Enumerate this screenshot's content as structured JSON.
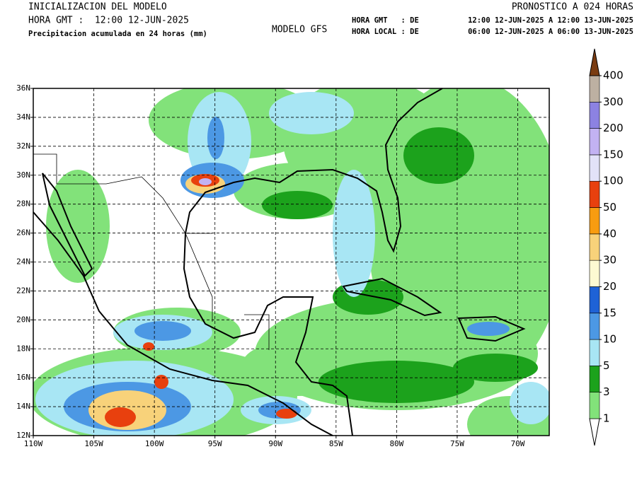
{
  "header": {
    "left_title": "INICIALIZACION DEL MODELO",
    "left_time": "HORA GMT :  12:00 12-JUN-2025",
    "variable": "Precipitacion acumulada en 24 horas (mm)",
    "model": "MODELO GFS",
    "forecast": "PRONOSTICO A 024 HORAS",
    "gmt_label": "HORA GMT   : DE",
    "gmt_range": "12:00 12-JUN-2025 A 12:00 13-JUN-2025",
    "local_label": "HORA LOCAL : DE",
    "local_range": "06:00 12-JUN-2025 A 06:00 13-JUN-2025"
  },
  "map": {
    "xlim": [
      -110,
      -67.4
    ],
    "ylim": [
      12,
      36
    ],
    "xticks": [
      {
        "value": -110,
        "label": "110W"
      },
      {
        "value": -105,
        "label": "105W"
      },
      {
        "value": -100,
        "label": "100W"
      },
      {
        "value": -95,
        "label": "95W"
      },
      {
        "value": -90,
        "label": "90W"
      },
      {
        "value": -85,
        "label": "85W"
      },
      {
        "value": -80,
        "label": "80W"
      },
      {
        "value": -75,
        "label": "75W"
      },
      {
        "value": -70,
        "label": "70W"
      }
    ],
    "yticks": [
      {
        "value": 12,
        "label": "12N"
      },
      {
        "value": 14,
        "label": "14N"
      },
      {
        "value": 16,
        "label": "16N"
      },
      {
        "value": 18,
        "label": "18N"
      },
      {
        "value": 20,
        "label": "20N"
      },
      {
        "value": 22,
        "label": "22N"
      },
      {
        "value": 24,
        "label": "24N"
      },
      {
        "value": 26,
        "label": "26N"
      },
      {
        "value": 28,
        "label": "28N"
      },
      {
        "value": 30,
        "label": "30N"
      },
      {
        "value": 32,
        "label": "32N"
      },
      {
        "value": 34,
        "label": "34N"
      },
      {
        "value": 36,
        "label": "36N"
      }
    ],
    "grid": true,
    "colorbar": {
      "levels": [
        1,
        3,
        5,
        10,
        15,
        20,
        30,
        40,
        50,
        100,
        150,
        200,
        300,
        400
      ],
      "colors": [
        "#ffffff",
        "#82e27a",
        "#1ca21c",
        "#a8e6f4",
        "#4c98e4",
        "#1e62d6",
        "#fdfad2",
        "#f8d27a",
        "#f89c10",
        "#e8400e",
        "#e2e2f8",
        "#c2b2f2",
        "#8c82e2",
        "#bdb0a2",
        "#7a3c12"
      ]
    }
  }
}
